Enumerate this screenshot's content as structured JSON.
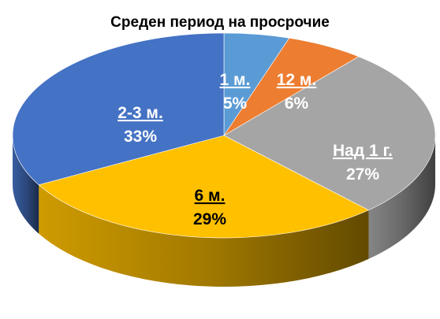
{
  "chart_data": {
    "type": "pie",
    "title": "Среден период на просрочие",
    "style": "3d",
    "start_angle_deg": 0,
    "direction": "clockwise",
    "slices": [
      {
        "label": "1 м.",
        "value": 5,
        "percent_label": "5%",
        "color": "#5b9bd5"
      },
      {
        "label": "12 м.",
        "value": 6,
        "percent_label": "6%",
        "color": "#ed7d31"
      },
      {
        "label": "Над 1 г.",
        "value": 27,
        "percent_label": "27%",
        "color": "#a5a5a5"
      },
      {
        "label": "6 м.",
        "value": 29,
        "percent_label": "29%",
        "color": "#ffc000"
      },
      {
        "label": "2-3 м.",
        "value": 33,
        "percent_label": "33%",
        "color": "#4472c4"
      }
    ]
  }
}
